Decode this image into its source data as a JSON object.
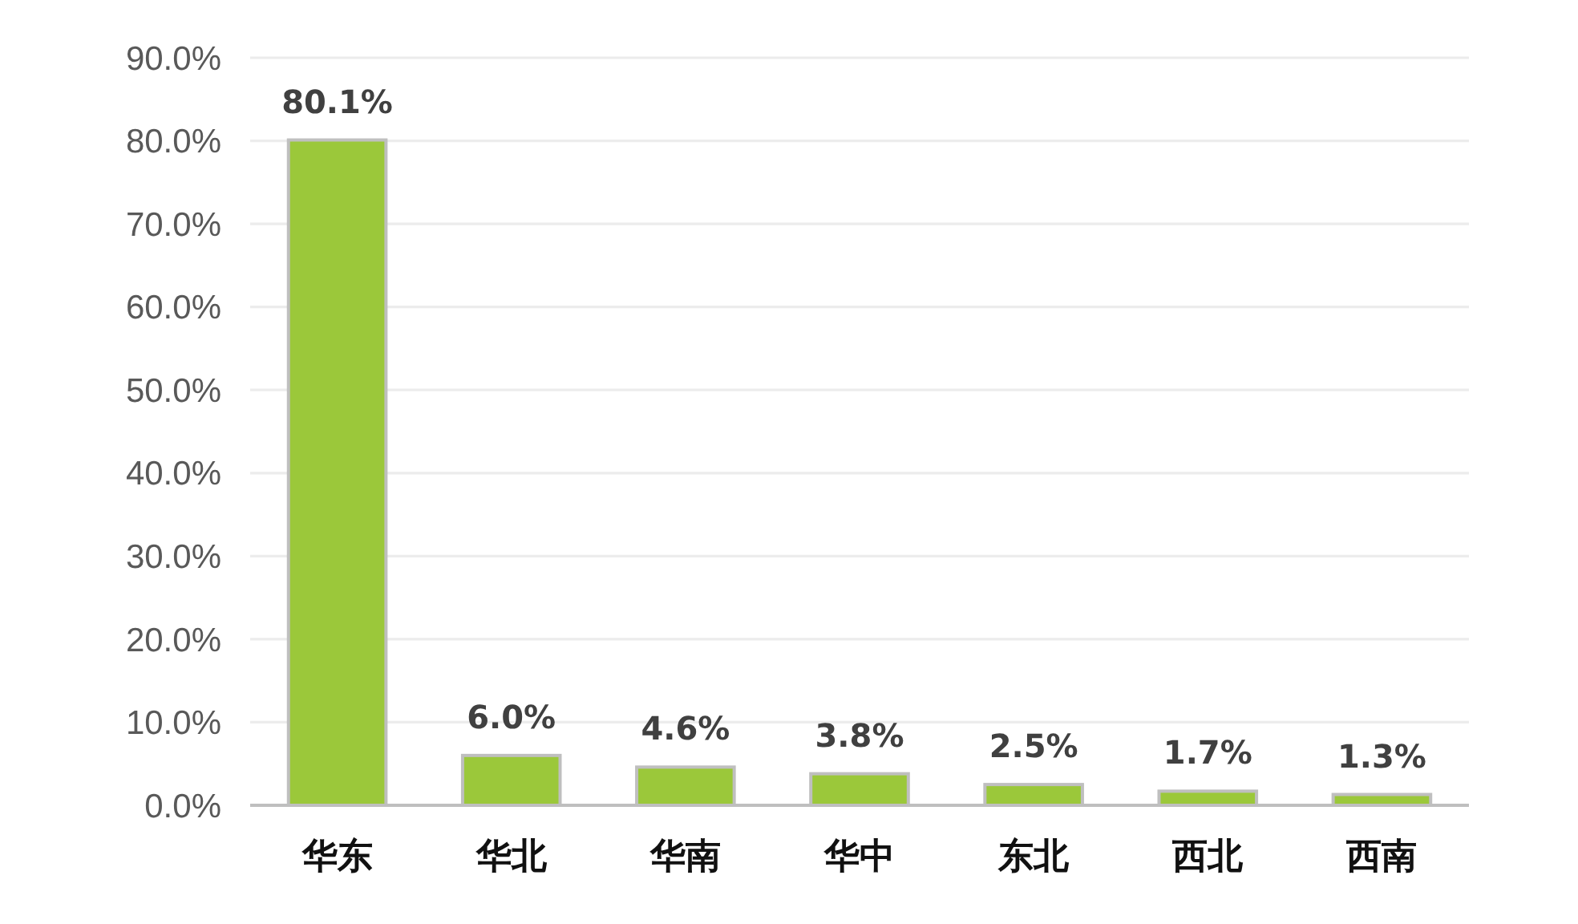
{
  "chart_data": {
    "type": "bar",
    "categories": [
      "华东",
      "华北",
      "华南",
      "华中",
      "东北",
      "西北",
      "西南"
    ],
    "values": [
      80.1,
      6.0,
      4.6,
      3.8,
      2.5,
      1.7,
      1.3
    ],
    "value_labels": [
      "80.1%",
      "6.0%",
      "4.6%",
      "3.8%",
      "2.5%",
      "1.7%",
      "1.3%"
    ],
    "color": "#9bc83a",
    "ylim": [
      0,
      90
    ],
    "yticks": [
      {
        "value": 0,
        "label": "0.0%"
      },
      {
        "value": 10,
        "label": "10.0%"
      },
      {
        "value": 20,
        "label": "20.0%"
      },
      {
        "value": 30,
        "label": "30.0%"
      },
      {
        "value": 40,
        "label": "40.0%"
      },
      {
        "value": 50,
        "label": "50.0%"
      },
      {
        "value": 60,
        "label": "60.0%"
      },
      {
        "value": 70,
        "label": "70.0%"
      },
      {
        "value": 80,
        "label": "80.0%"
      },
      {
        "value": 90,
        "label": "90.0%"
      }
    ],
    "grid": "y"
  }
}
